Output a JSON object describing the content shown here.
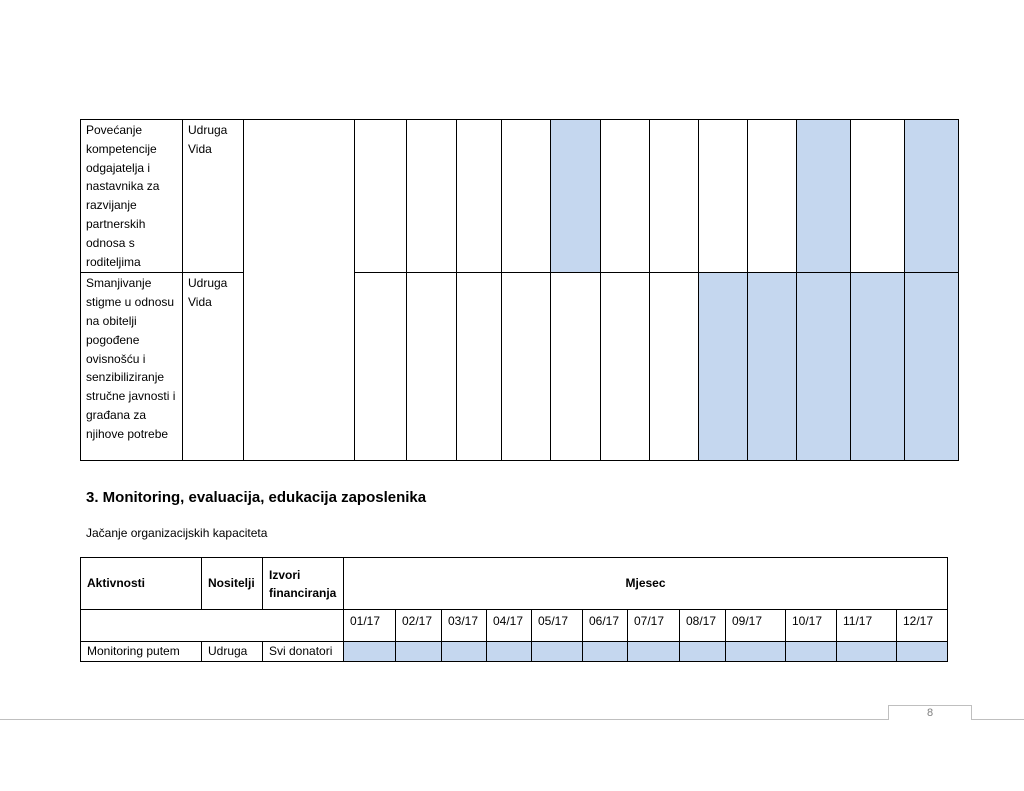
{
  "top_table": {
    "rows": [
      {
        "activity": "Povećanje kompetencije odgajatelja i nastavnika za razvijanje partnerskih odnosa s roditeljima",
        "holder": "Udruga Vida",
        "funding": "",
        "months_filled": [
          false,
          false,
          false,
          true,
          false,
          false,
          false,
          false,
          true,
          false,
          true,
          false
        ]
      },
      {
        "activity": "Smanjivanje stigme u odnosu na obitelji pogođene ovisnošću i senzibiliziranje stručne javnosti i građana za njihove potrebe",
        "holder": "Udruga Vida",
        "funding": "",
        "months_filled": [
          false,
          false,
          false,
          false,
          false,
          false,
          true,
          true,
          true,
          true,
          true,
          true
        ]
      }
    ]
  },
  "section": {
    "heading": "3. Monitoring, evaluacija, edukacija zaposlenika",
    "subtitle": "Jačanje organizacijskih kapaciteta"
  },
  "bottom_table": {
    "headers": {
      "activities": "Aktivnosti",
      "holders": "Nositelji",
      "funding": "Izvori financiranja",
      "month": "Mjesec"
    },
    "months": [
      "01/17",
      "02/17",
      "03/17",
      "04/17",
      "05/17",
      "06/17",
      "07/17",
      "08/17",
      "09/17",
      "10/17",
      "11/17",
      "12/17"
    ],
    "rows": [
      {
        "activity": "Monitoring putem",
        "holder": "Udruga",
        "funding": "Svi donatori",
        "months_filled": [
          true,
          true,
          true,
          true,
          true,
          true,
          true,
          true,
          true,
          true,
          true,
          true
        ]
      }
    ]
  },
  "footer": {
    "page_number": "8"
  },
  "colors": {
    "filled_cell": "#c5d7ef",
    "footer_line": "#bfbfbf"
  }
}
